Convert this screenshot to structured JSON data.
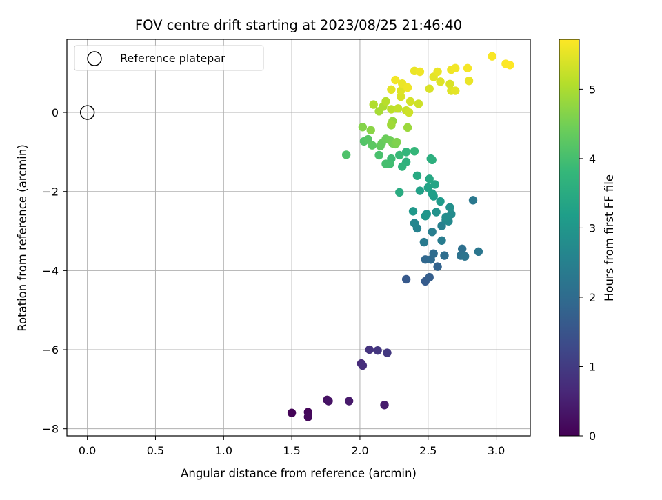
{
  "chart_data": {
    "type": "scatter",
    "title": "FOV centre drift starting at 2023/08/25 21:46:40",
    "xlabel": "Angular distance from reference (arcmin)",
    "ylabel": "Rotation from reference (arcmin)",
    "xlim": [
      -0.15,
      3.25
    ],
    "ylim": [
      -8.18,
      1.85
    ],
    "xticks": [
      0.0,
      0.5,
      1.0,
      1.5,
      2.0,
      2.5,
      3.0
    ],
    "xtick_labels": [
      "0.0",
      "0.5",
      "1.0",
      "1.5",
      "2.0",
      "2.5",
      "3.0"
    ],
    "yticks": [
      0,
      -2,
      -4,
      -6,
      -8
    ],
    "ytick_labels": [
      "0",
      "−2",
      "−4",
      "−6",
      "−8"
    ],
    "grid": true,
    "colormap": "viridis",
    "colorbar": {
      "label": "Hours from first FF file",
      "range": [
        0,
        5.72
      ],
      "ticks": [
        0,
        1,
        2,
        3,
        4,
        5
      ],
      "tick_labels": [
        "0",
        "1",
        "2",
        "3",
        "4",
        "5"
      ]
    },
    "legend": {
      "location": "upper-left",
      "entries": [
        "Reference platepar"
      ]
    },
    "reference_point": {
      "x": 0.0,
      "y": 0.0,
      "label": "Reference platepar"
    },
    "points": [
      [
        1.5,
        -7.6,
        0.05
      ],
      [
        1.62,
        -7.58,
        0.1
      ],
      [
        1.62,
        -7.7,
        0.15
      ],
      [
        1.76,
        -7.27,
        0.25
      ],
      [
        1.77,
        -7.3,
        0.3
      ],
      [
        1.92,
        -7.3,
        0.4
      ],
      [
        2.18,
        -7.4,
        0.45
      ],
      [
        2.01,
        -6.35,
        0.7
      ],
      [
        2.02,
        -6.4,
        0.75
      ],
      [
        2.07,
        -6.0,
        0.85
      ],
      [
        2.13,
        -6.02,
        0.9
      ],
      [
        2.2,
        -6.08,
        0.95
      ],
      [
        2.34,
        -4.22,
        1.6
      ],
      [
        2.48,
        -4.27,
        1.65
      ],
      [
        2.51,
        -4.17,
        1.7
      ],
      [
        2.57,
        -3.9,
        1.8
      ],
      [
        2.48,
        -3.72,
        1.9
      ],
      [
        2.52,
        -3.72,
        1.95
      ],
      [
        2.54,
        -3.57,
        2.0
      ],
      [
        2.62,
        -3.62,
        2.05
      ],
      [
        2.75,
        -3.45,
        2.1
      ],
      [
        2.74,
        -3.62,
        2.15
      ],
      [
        2.77,
        -3.64,
        2.2
      ],
      [
        2.87,
        -3.52,
        2.25
      ],
      [
        2.83,
        -2.22,
        2.3
      ],
      [
        2.47,
        -3.28,
        2.35
      ],
      [
        2.6,
        -3.24,
        2.4
      ],
      [
        2.53,
        -3.02,
        2.45
      ],
      [
        2.6,
        -2.87,
        2.5
      ],
      [
        2.42,
        -2.93,
        2.55
      ],
      [
        2.4,
        -2.8,
        2.6
      ],
      [
        2.63,
        -2.72,
        2.65
      ],
      [
        2.65,
        -2.75,
        2.7
      ],
      [
        2.67,
        -2.57,
        2.75
      ],
      [
        2.63,
        -2.65,
        2.8
      ],
      [
        2.66,
        -2.4,
        2.85
      ],
      [
        2.56,
        -2.52,
        2.9
      ],
      [
        2.49,
        -2.57,
        2.95
      ],
      [
        2.48,
        -2.62,
        3.0
      ],
      [
        2.39,
        -2.5,
        3.05
      ],
      [
        2.59,
        -2.25,
        3.1
      ],
      [
        2.54,
        -2.12,
        3.15
      ],
      [
        2.53,
        -2.05,
        3.2
      ],
      [
        2.44,
        -1.98,
        3.25
      ],
      [
        2.5,
        -1.9,
        3.3
      ],
      [
        2.55,
        -1.82,
        3.35
      ],
      [
        2.51,
        -1.68,
        3.4
      ],
      [
        2.42,
        -1.6,
        3.45
      ],
      [
        2.29,
        -2.02,
        3.5
      ],
      [
        2.52,
        -1.17,
        3.55
      ],
      [
        2.53,
        -1.2,
        3.6
      ],
      [
        2.34,
        -1.25,
        3.65
      ],
      [
        2.31,
        -1.37,
        3.7
      ],
      [
        2.34,
        -1.0,
        3.75
      ],
      [
        2.4,
        -0.98,
        3.8
      ],
      [
        2.29,
        -1.08,
        3.85
      ],
      [
        2.23,
        -1.17,
        3.9
      ],
      [
        2.22,
        -1.3,
        3.95
      ],
      [
        2.19,
        -1.3,
        4.0
      ],
      [
        2.14,
        -1.08,
        4.05
      ],
      [
        1.9,
        -1.07,
        4.1
      ],
      [
        2.03,
        -0.73,
        4.15
      ],
      [
        2.06,
        -0.68,
        4.2
      ],
      [
        2.09,
        -0.83,
        4.25
      ],
      [
        2.15,
        -0.85,
        4.3
      ],
      [
        2.16,
        -0.78,
        4.35
      ],
      [
        2.19,
        -0.67,
        4.4
      ],
      [
        2.22,
        -0.7,
        4.45
      ],
      [
        2.24,
        -0.78,
        4.5
      ],
      [
        2.26,
        -0.8,
        4.55
      ],
      [
        2.27,
        -0.75,
        4.6
      ],
      [
        2.02,
        -0.37,
        4.65
      ],
      [
        2.08,
        -0.45,
        4.7
      ],
      [
        2.23,
        -0.32,
        4.75
      ],
      [
        2.24,
        -0.22,
        4.8
      ],
      [
        2.35,
        -0.38,
        4.85
      ],
      [
        2.23,
        -0.3,
        4.9
      ],
      [
        2.14,
        0.03,
        4.95
      ],
      [
        2.17,
        0.15,
        5.0
      ],
      [
        2.1,
        0.2,
        5.05
      ],
      [
        2.19,
        0.28,
        5.1
      ],
      [
        2.23,
        0.08,
        5.15
      ],
      [
        2.28,
        0.1,
        5.2
      ],
      [
        2.34,
        0.05,
        5.25
      ],
      [
        2.36,
        0.0,
        5.3
      ],
      [
        2.37,
        0.28,
        5.35
      ],
      [
        2.3,
        0.4,
        5.4
      ],
      [
        2.3,
        0.55,
        5.45
      ],
      [
        2.23,
        0.58,
        5.5
      ],
      [
        2.31,
        0.73,
        5.55
      ],
      [
        2.35,
        0.63,
        5.6
      ],
      [
        2.26,
        0.82,
        5.62
      ],
      [
        2.43,
        0.22,
        5.3
      ],
      [
        2.51,
        0.6,
        5.4
      ],
      [
        2.59,
        0.78,
        5.45
      ],
      [
        2.54,
        0.9,
        5.5
      ],
      [
        2.57,
        1.03,
        5.55
      ],
      [
        2.4,
        1.05,
        5.55
      ],
      [
        2.44,
        1.03,
        5.6
      ],
      [
        2.66,
        0.72,
        5.4
      ],
      [
        2.67,
        0.55,
        5.45
      ],
      [
        2.7,
        0.55,
        5.5
      ],
      [
        2.67,
        1.08,
        5.6
      ],
      [
        2.7,
        1.12,
        5.62
      ],
      [
        2.79,
        1.12,
        5.65
      ],
      [
        2.8,
        0.8,
        5.55
      ],
      [
        2.97,
        1.42,
        5.68
      ],
      [
        3.07,
        1.23,
        5.7
      ],
      [
        3.1,
        1.2,
        5.72
      ]
    ]
  }
}
